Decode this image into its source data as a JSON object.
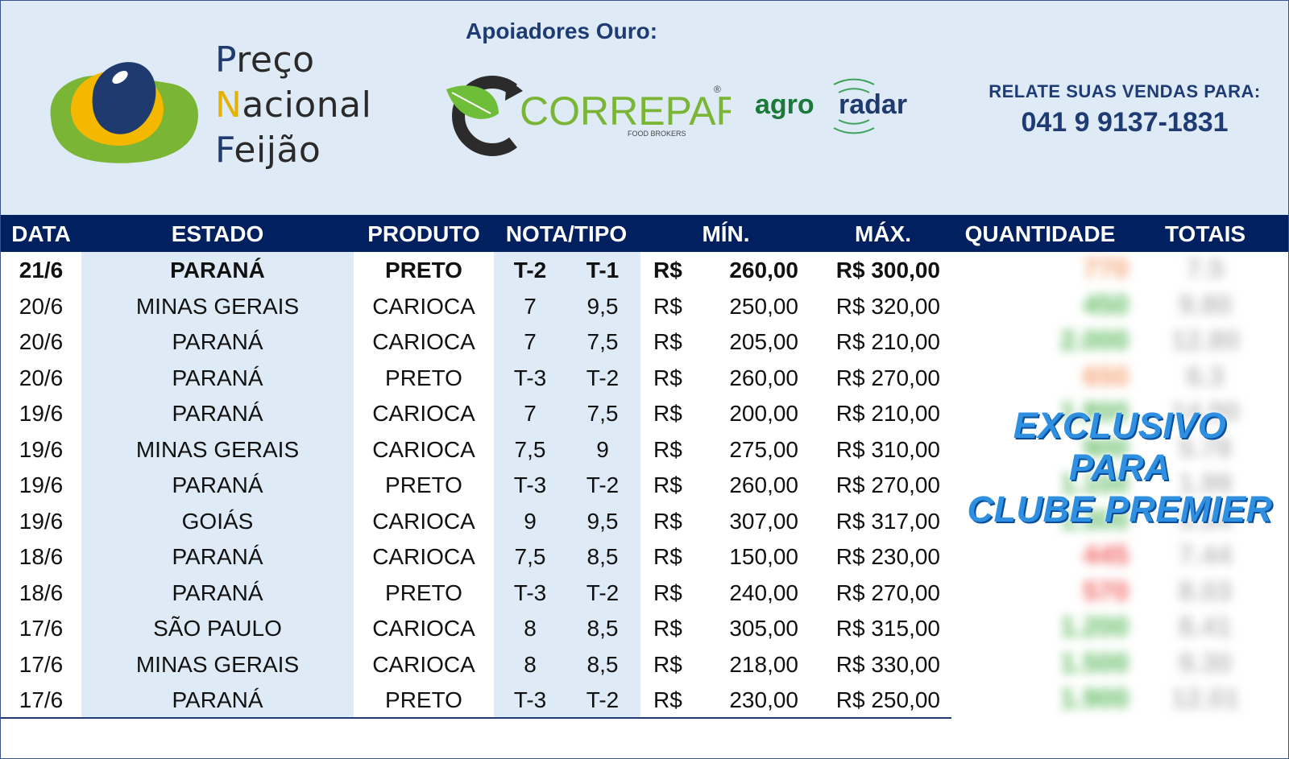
{
  "header": {
    "brand_lines": [
      {
        "initial": "P",
        "rest": "reço"
      },
      {
        "initial": "N",
        "rest": "acional"
      },
      {
        "initial": "F",
        "rest": "eijão"
      }
    ],
    "supporters_label": "Apoiadores Ouro:",
    "sponsor1": "CORREPAR",
    "sponsor1_sub": "FOOD BROKERS",
    "sponsor2_a": "agro",
    "sponsor2_b": "radar",
    "report_label": "RELATE SUAS VENDAS PARA:",
    "report_phone": "041 9 9137-1831"
  },
  "table": {
    "columns": [
      "DATA",
      "ESTADO",
      "PRODUTO",
      "NOTA/TIPO",
      "MÍN.",
      "MÁX.",
      "QUANTIDADE",
      "TOTAIS"
    ],
    "rows": [
      {
        "data": "21/6",
        "estado": "PARANÁ",
        "produto": "PRETO",
        "nota": "T-2",
        "tipo": "T-1",
        "cur": "R$",
        "min": "260,00",
        "max": "R$ 300,00"
      },
      {
        "data": "20/6",
        "estado": "MINAS GERAIS",
        "produto": "CARIOCA",
        "nota": "7",
        "tipo": "9,5",
        "cur": "R$",
        "min": "250,00",
        "max": "R$ 320,00"
      },
      {
        "data": "20/6",
        "estado": "PARANÁ",
        "produto": "CARIOCA",
        "nota": "7",
        "tipo": "7,5",
        "cur": "R$",
        "min": "205,00",
        "max": "R$ 210,00"
      },
      {
        "data": "20/6",
        "estado": "PARANÁ",
        "produto": "PRETO",
        "nota": "T-3",
        "tipo": "T-2",
        "cur": "R$",
        "min": "260,00",
        "max": "R$ 270,00"
      },
      {
        "data": "19/6",
        "estado": "PARANÁ",
        "produto": "CARIOCA",
        "nota": "7",
        "tipo": "7,5",
        "cur": "R$",
        "min": "200,00",
        "max": "R$ 210,00"
      },
      {
        "data": "19/6",
        "estado": "MINAS GERAIS",
        "produto": "CARIOCA",
        "nota": "7,5",
        "tipo": "9",
        "cur": "R$",
        "min": "275,00",
        "max": "R$ 310,00"
      },
      {
        "data": "19/6",
        "estado": "PARANÁ",
        "produto": "PRETO",
        "nota": "T-3",
        "tipo": "T-2",
        "cur": "R$",
        "min": "260,00",
        "max": "R$ 270,00"
      },
      {
        "data": "19/6",
        "estado": "GOIÁS",
        "produto": "CARIOCA",
        "nota": "9",
        "tipo": "9,5",
        "cur": "R$",
        "min": "307,00",
        "max": "R$ 317,00"
      },
      {
        "data": "18/6",
        "estado": "PARANÁ",
        "produto": "CARIOCA",
        "nota": "7,5",
        "tipo": "8,5",
        "cur": "R$",
        "min": "150,00",
        "max": "R$ 230,00"
      },
      {
        "data": "18/6",
        "estado": "PARANÁ",
        "produto": "PRETO",
        "nota": "T-3",
        "tipo": "T-2",
        "cur": "R$",
        "min": "240,00",
        "max": "R$ 270,00"
      },
      {
        "data": "17/6",
        "estado": "SÃO PAULO",
        "produto": "CARIOCA",
        "nota": "8",
        "tipo": "8,5",
        "cur": "R$",
        "min": "305,00",
        "max": "R$ 315,00"
      },
      {
        "data": "17/6",
        "estado": "MINAS GERAIS",
        "produto": "CARIOCA",
        "nota": "8",
        "tipo": "8,5",
        "cur": "R$",
        "min": "218,00",
        "max": "R$ 330,00"
      },
      {
        "data": "17/6",
        "estado": "PARANÁ",
        "produto": "PRETO",
        "nota": "T-3",
        "tipo": "T-2",
        "cur": "R$",
        "min": "230,00",
        "max": "R$ 250,00"
      }
    ],
    "blurred_quantities": [
      "770",
      "450",
      "2.000",
      "650",
      "1.800",
      "900",
      "1.100",
      "1.300",
      "445",
      "570",
      "1.200",
      "1.500",
      "1.900"
    ],
    "blurred_quantity_colors": [
      "#f4a070",
      "#59b85a",
      "#59b85a",
      "#f4a070",
      "#59b85a",
      "#59b85a",
      "#59b85a",
      "#59b85a",
      "#f06060",
      "#f06060",
      "#59b85a",
      "#59b85a",
      "#59b85a"
    ],
    "blurred_totals": [
      "7.5",
      "9.80",
      "12.80",
      "6.3",
      "14.90",
      "5.78",
      "1.99",
      "5.34",
      "7.44",
      "8.03",
      "8.41",
      "9.30",
      "12.01"
    ],
    "overlay_lines": [
      "EXCLUSIVO",
      "PARA",
      "CLUBE PREMIER"
    ]
  },
  "colors": {
    "header_bg": "#deebf7",
    "table_header_bg": "#002060",
    "brand_blue": "#1f3b73",
    "overlay_blue": "#2f8fe0"
  }
}
